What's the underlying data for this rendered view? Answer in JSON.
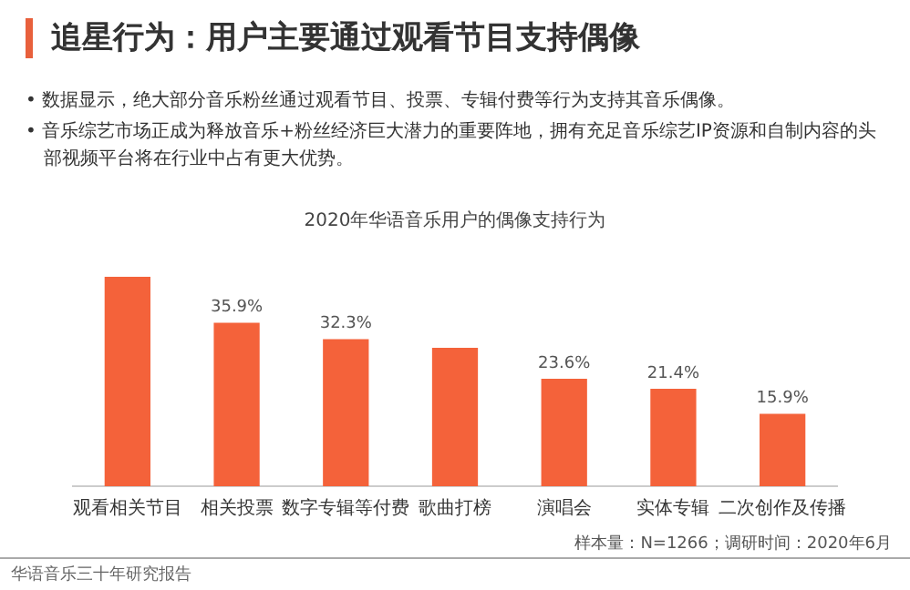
{
  "chart_data": {
    "type": "bar",
    "title": "追星行为：用户主要通过观看节目支持偶像",
    "subtitle": "2020年华语音乐用户的偶像支持行为",
    "categories": [
      "观看相关节目",
      "相关投票",
      "数字专辑等付费",
      "歌曲打榜",
      "演唱会",
      "实体专辑",
      "二次创作及传播"
    ],
    "values": [
      46.0,
      35.9,
      32.3,
      30.4,
      23.6,
      21.4,
      15.9
    ],
    "value_labels": [
      null,
      "35.9%",
      "32.3%",
      null,
      "23.6%",
      "21.4%",
      "15.9%"
    ],
    "color": "#f4623a",
    "grid": false,
    "legend": false,
    "annotations": [
      "• 数据显示，绝大部分音乐粉丝通过观看节目、投票、专辑付费等行为支持其音乐偶像。",
      "• 音乐综艺市场正成为释放音乐+粉丝经济巨大潜力的重要阵地，拥有充足音乐综艺IP资源和自制内容的头部视频平台将在行业中占有更大优势。",
      "样本量：N=1266；调研时间：2020年6月",
      "华语音乐三十年研究报告"
    ]
  }
}
